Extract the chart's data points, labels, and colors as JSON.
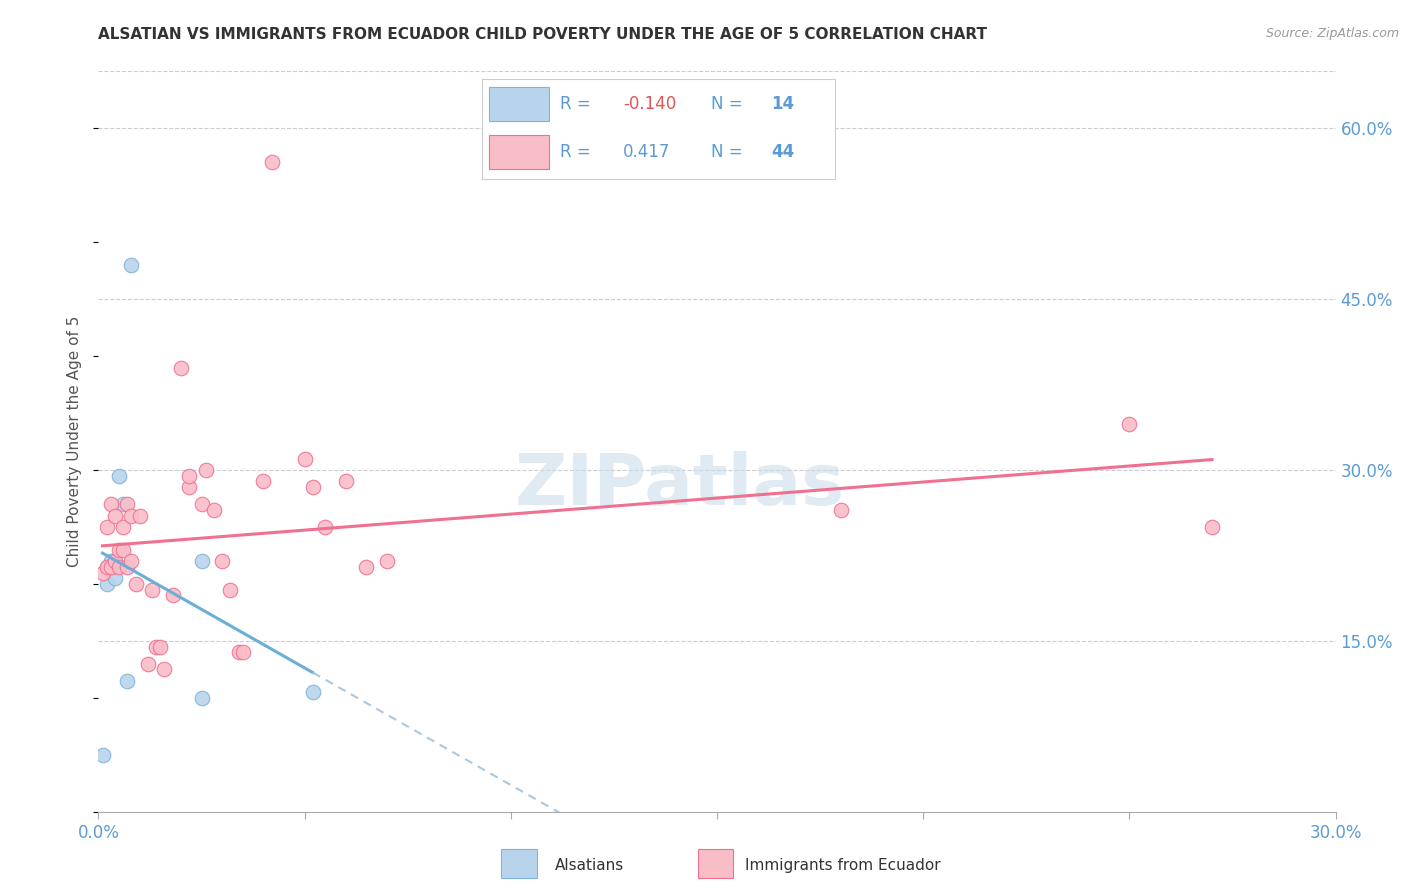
{
  "title": "ALSATIAN VS IMMIGRANTS FROM ECUADOR CHILD POVERTY UNDER THE AGE OF 5 CORRELATION CHART",
  "source": "Source: ZipAtlas.com",
  "ylabel": "Child Poverty Under the Age of 5",
  "xlim": [
    0.0,
    0.3
  ],
  "ylim": [
    0.0,
    0.65
  ],
  "x_ticks": [
    0.0,
    0.05,
    0.1,
    0.15,
    0.2,
    0.25,
    0.3
  ],
  "y_ticks_right": [
    0.15,
    0.3,
    0.45,
    0.6
  ],
  "y_tick_labels_right": [
    "15.0%",
    "30.0%",
    "45.0%",
    "60.0%"
  ],
  "color_alsatian_fill": "#b8d4ec",
  "color_alsatian_edge": "#7fb3d9",
  "color_ecuador_fill": "#f9bdc8",
  "color_ecuador_edge": "#f07090",
  "color_line_blue": "#6baed6",
  "color_line_pink": "#f07090",
  "color_dashed": "#aac8e0",
  "color_grid": "#cccccc",
  "watermark": "ZIPatlas",
  "legend_R1": "-0.140",
  "legend_N1": "14",
  "legend_R2": "0.417",
  "legend_N2": "44",
  "alsatian_x": [
    0.001,
    0.002,
    0.002,
    0.003,
    0.003,
    0.004,
    0.004,
    0.005,
    0.006,
    0.007,
    0.008,
    0.025,
    0.025,
    0.052
  ],
  "alsatian_y": [
    0.05,
    0.215,
    0.2,
    0.215,
    0.22,
    0.215,
    0.205,
    0.295,
    0.27,
    0.115,
    0.48,
    0.1,
    0.22,
    0.105
  ],
  "ecuador_x": [
    0.001,
    0.002,
    0.002,
    0.003,
    0.003,
    0.004,
    0.004,
    0.005,
    0.005,
    0.006,
    0.006,
    0.007,
    0.007,
    0.008,
    0.008,
    0.009,
    0.01,
    0.012,
    0.013,
    0.014,
    0.015,
    0.016,
    0.018,
    0.02,
    0.022,
    0.022,
    0.025,
    0.026,
    0.028,
    0.03,
    0.032,
    0.034,
    0.035,
    0.04,
    0.042,
    0.05,
    0.052,
    0.055,
    0.06,
    0.065,
    0.07,
    0.18,
    0.25,
    0.27
  ],
  "ecuador_y": [
    0.21,
    0.215,
    0.25,
    0.215,
    0.27,
    0.22,
    0.26,
    0.23,
    0.215,
    0.23,
    0.25,
    0.27,
    0.215,
    0.22,
    0.26,
    0.2,
    0.26,
    0.13,
    0.195,
    0.145,
    0.145,
    0.125,
    0.19,
    0.39,
    0.285,
    0.295,
    0.27,
    0.3,
    0.265,
    0.22,
    0.195,
    0.14,
    0.14,
    0.29,
    0.57,
    0.31,
    0.285,
    0.25,
    0.29,
    0.215,
    0.22,
    0.265,
    0.34,
    0.25
  ]
}
